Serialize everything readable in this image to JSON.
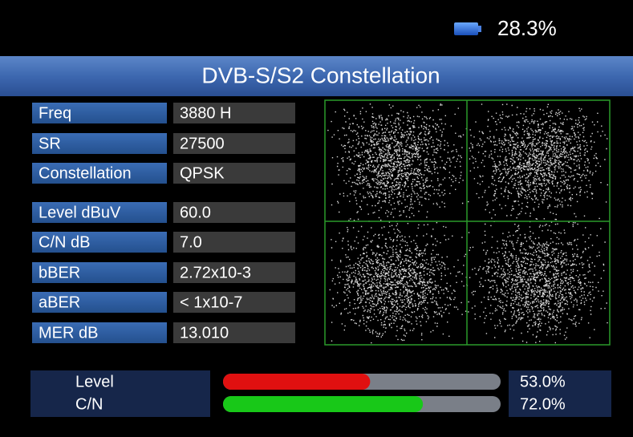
{
  "battery": "28.3%",
  "title": "DVB-S/S2 Constellation",
  "rows": [
    {
      "label": "Freq",
      "value": "3880  H"
    },
    {
      "label": "SR",
      "value": "27500"
    },
    {
      "label": "Constellation",
      "value": "QPSK"
    },
    {
      "label": "Level dBuV",
      "value": "60.0"
    },
    {
      "label": "C/N dB",
      "value": "7.0"
    },
    {
      "label": "bBER",
      "value": "2.72x10-3"
    },
    {
      "label": "aBER",
      "value": "< 1x10-7"
    },
    {
      "label": "MER dB",
      "value": "13.010"
    }
  ],
  "meters": [
    {
      "label": "Level",
      "value": 53.0,
      "value_label": "53.0%",
      "color": "#e01010"
    },
    {
      "label": "C/N",
      "value": 72.0,
      "value_label": "72.0%",
      "color": "#18c818"
    }
  ]
}
